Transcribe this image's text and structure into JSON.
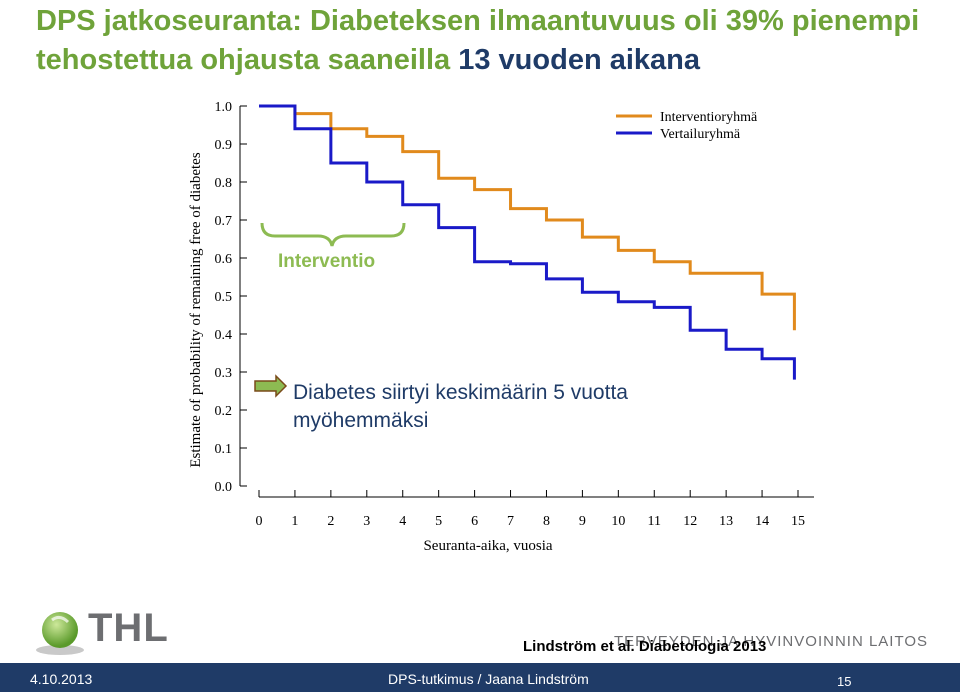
{
  "slide": {
    "title_part1": "DPS jatkoseuranta: Diabeteksen ilmaantuvuus oli 39% pienempi tehostettua ohjausta saaneilla ",
    "title_part2": "13 vuoden aikana",
    "citation": "Lindström et al. Diabetologia 2013",
    "footer_date": "4.10.2013",
    "footer_center": "DPS-tutkimus / Jaana Lindström",
    "page_number": "15",
    "logo_wordmark": "THL",
    "logo_tagline": "TERVEYDEN JA HYVINVOINNIN LAITOS"
  },
  "colors": {
    "title_green": "#6fa33a",
    "title_dark": "#1f3b67",
    "intervention": "#e18a1c",
    "control": "#1a1ac8",
    "accent_green": "#8dbb52",
    "footer_bg": "#1f3b67"
  },
  "chart_data": {
    "type": "line",
    "step": true,
    "ylabel": "Estimate of probability of remaining free of diabetes",
    "xlabel": "Seuranta-aika, vuosia",
    "xlim": [
      0,
      15
    ],
    "ylim": [
      0,
      1
    ],
    "x_ticks": [
      "0",
      "1",
      "2",
      "3",
      "4",
      "5",
      "6",
      "7",
      "8",
      "9",
      "10",
      "11",
      "12",
      "13",
      "14",
      "15"
    ],
    "y_ticks": [
      "0.0",
      "0.1",
      "0.2",
      "0.3",
      "0.4",
      "0.5",
      "0.6",
      "0.7",
      "0.8",
      "0.9",
      "1.0"
    ],
    "legend_position": "top-right",
    "grid": false,
    "series": [
      {
        "name": "Interventioryhmä",
        "color": "#e18a1c",
        "points": [
          [
            0,
            1.0
          ],
          [
            1,
            0.98
          ],
          [
            2,
            0.94
          ],
          [
            3,
            0.92
          ],
          [
            4,
            0.88
          ],
          [
            5,
            0.81
          ],
          [
            6,
            0.78
          ],
          [
            7,
            0.73
          ],
          [
            8,
            0.7
          ],
          [
            9,
            0.655
          ],
          [
            10,
            0.62
          ],
          [
            11,
            0.59
          ],
          [
            12,
            0.56
          ],
          [
            14,
            0.505
          ],
          [
            14.9,
            0.41
          ]
        ]
      },
      {
        "name": "Vertailuryhmä",
        "color": "#1a1ac8",
        "points": [
          [
            0,
            1.0
          ],
          [
            1,
            0.94
          ],
          [
            2,
            0.85
          ],
          [
            3,
            0.8
          ],
          [
            4,
            0.74
          ],
          [
            5,
            0.68
          ],
          [
            6,
            0.59
          ],
          [
            7,
            0.585
          ],
          [
            8,
            0.545
          ],
          [
            9,
            0.51
          ],
          [
            10,
            0.485
          ],
          [
            11,
            0.47
          ],
          [
            12,
            0.41
          ],
          [
            13,
            0.36
          ],
          [
            14,
            0.335
          ],
          [
            14.9,
            0.28
          ]
        ]
      }
    ],
    "annotations": {
      "intervention_label": "Interventio",
      "intervention_range": [
        0,
        4
      ],
      "delay_text_line1": "Diabetes siirtyi keskimäärin 5 vuotta",
      "delay_text_line2": "myöhemmäksi"
    }
  }
}
